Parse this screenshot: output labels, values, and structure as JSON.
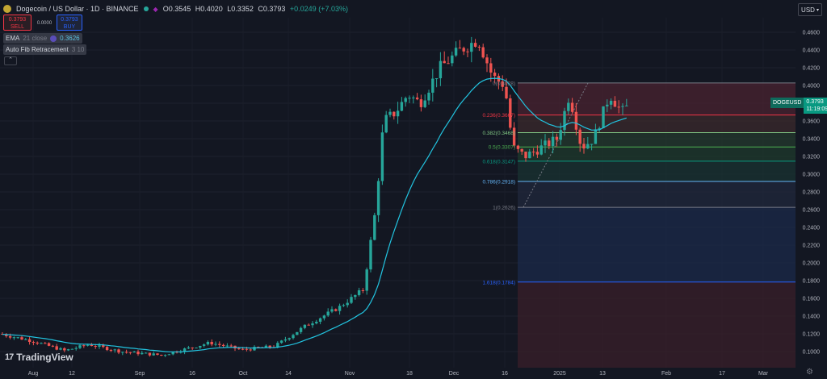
{
  "header": {
    "symbol_title": "Dogecoin / US Dollar · 1D · BINANCE",
    "ohlc": {
      "open": "O0.3545",
      "high": "H0.4020",
      "low": "L0.3352",
      "close": "C0.3793",
      "change": "+0.0249 (+7.03%)"
    }
  },
  "trade": {
    "sell_price": "0.3793",
    "sell_label": "SELL",
    "spread": "0.0000",
    "buy_price": "0.3793",
    "buy_label": "BUY"
  },
  "indicators": {
    "ema": {
      "name": "EMA",
      "params": "21 close",
      "value": "0.3626"
    },
    "fib": {
      "name": "Auto Fib Retracement",
      "params": "3 10"
    }
  },
  "currency": "USD",
  "price_tag": {
    "symbol": "DOGEUSD",
    "price": "0.3793",
    "countdown": "11:19:09"
  },
  "logo": "TradingView",
  "colors": {
    "up": "#26a69a",
    "down": "#ef5350",
    "ema": "#22c4e0",
    "background": "#131722"
  },
  "chart_data": {
    "type": "candlestick",
    "title": "Dogecoin / US Dollar · 1D · BINANCE",
    "y_axis": {
      "ticks": [
        "0.4600",
        "0.4400",
        "0.4200",
        "0.4000",
        "0.3800",
        "0.3600",
        "0.3400",
        "0.3200",
        "0.3000",
        "0.2800",
        "0.2600",
        "0.2400",
        "0.2200",
        "0.2000",
        "0.1800",
        "0.1600",
        "0.1400",
        "0.1200",
        "0.1000"
      ],
      "ylim": [
        0.0858,
        0.4825
      ],
      "side": "right"
    },
    "x_axis": {
      "ticks": [
        "Aug",
        "12",
        "Sep",
        "16",
        "Oct",
        "14",
        "Nov",
        "18",
        "Dec",
        "16",
        "2025",
        "13",
        "Feb",
        "17",
        "Mar"
      ]
    },
    "fib_levels": [
      {
        "label": "0(0.4028)",
        "level": 0,
        "value": 0.4028,
        "color": "#787b86"
      },
      {
        "label": "0.236(0.3667)",
        "level": 0.236,
        "value": 0.3667,
        "color": "#f23645"
      },
      {
        "label": "0.382(0.3468)",
        "level": 0.382,
        "value": 0.3468,
        "color": "#81c784"
      },
      {
        "label": "0.5(0.3307)",
        "level": 0.5,
        "value": 0.3307,
        "color": "#4caf50"
      },
      {
        "label": "0.618(0.3147)",
        "level": 0.618,
        "value": 0.3147,
        "color": "#089981"
      },
      {
        "label": "0.786(0.2918)",
        "level": 0.786,
        "value": 0.2918,
        "color": "#64b5f6"
      },
      {
        "label": "1(0.2626)",
        "level": 1,
        "value": 0.2626,
        "color": "#787b86"
      },
      {
        "label": "1.618(0.1784)",
        "level": 1.618,
        "value": 0.1784,
        "color": "#2962ff"
      }
    ],
    "series": [
      {
        "name": "EMA 21 close",
        "last_value": 0.3626
      }
    ],
    "ohlc_key_points": [
      {
        "date": "Aug",
        "close": 0.11
      },
      {
        "date": "Oct",
        "close": 0.11
      },
      {
        "date": "Nov",
        "close": 0.16
      },
      {
        "date": "Nov 18",
        "close": 0.38
      },
      {
        "date": "Dec",
        "close": 0.44
      },
      {
        "date": "Dec (peak)",
        "high": 0.47
      },
      {
        "date": "Dec 16",
        "close": 0.4
      },
      {
        "date": "2025",
        "close": 0.33
      },
      {
        "date": "13",
        "close": 0.36
      },
      {
        "date": "latest",
        "open": 0.3545,
        "high": 0.402,
        "low": 0.3352,
        "close": 0.3793
      }
    ]
  }
}
